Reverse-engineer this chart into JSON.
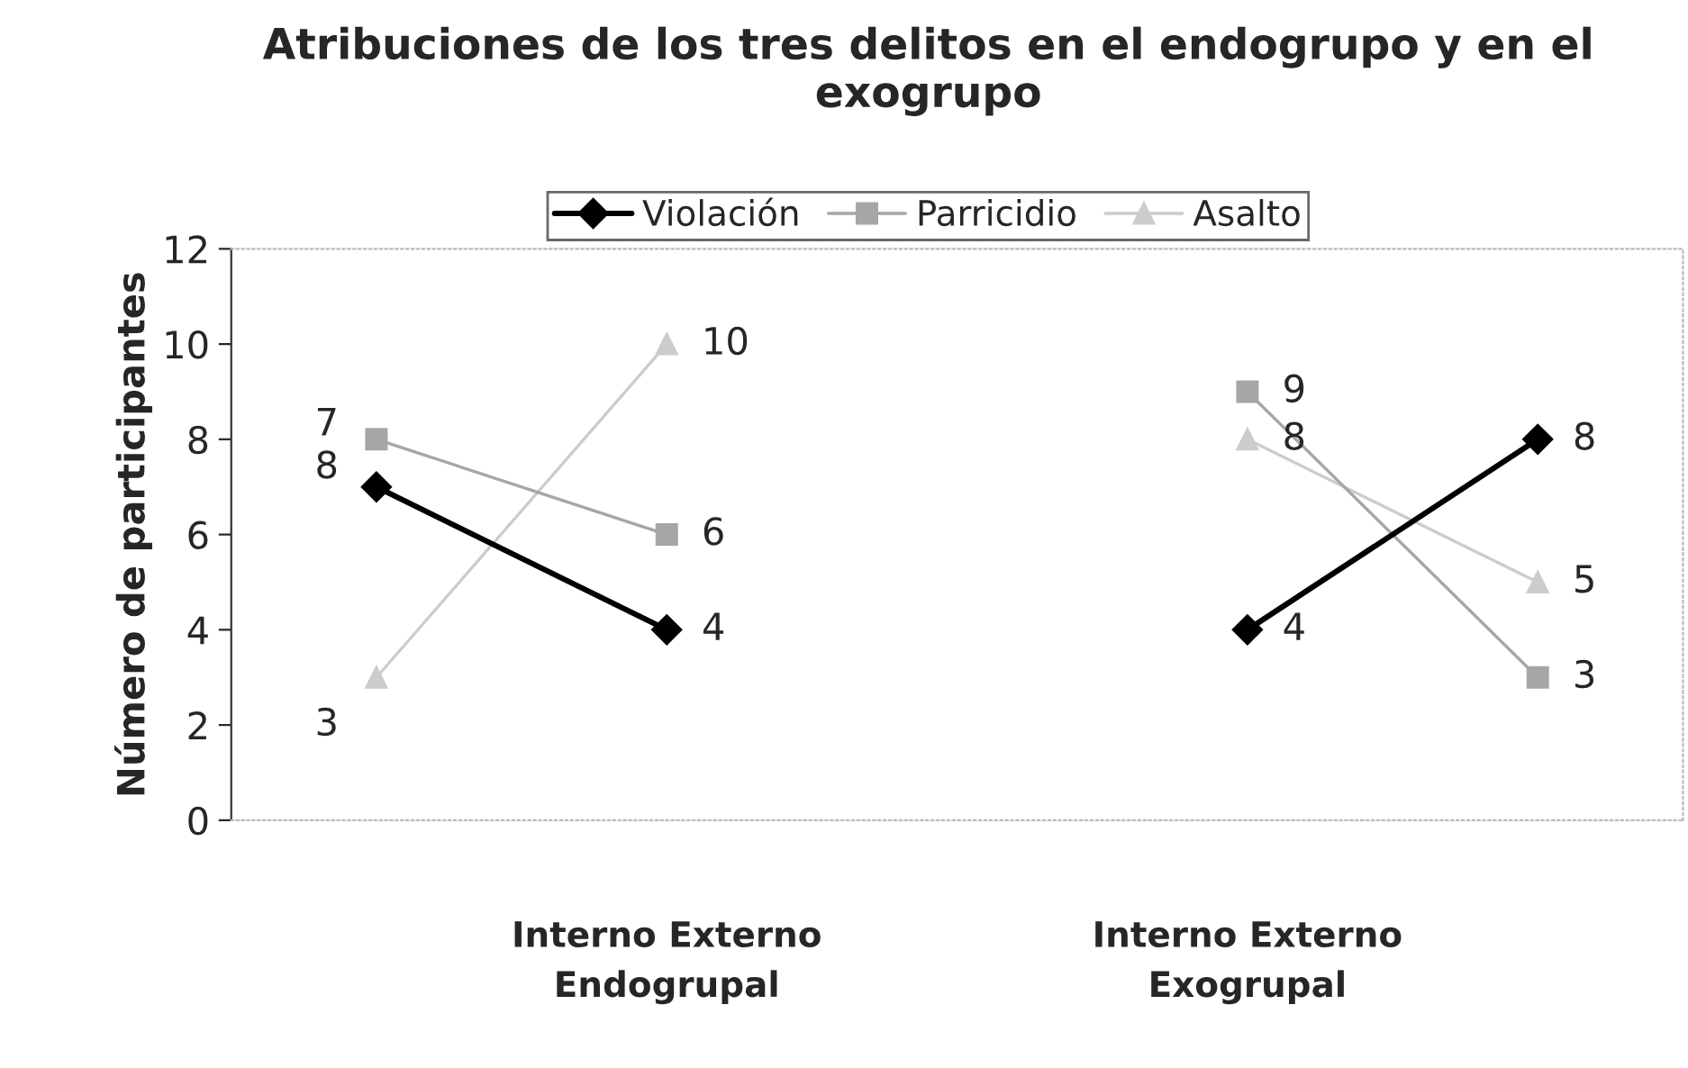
{
  "chart_data": {
    "type": "line",
    "title": "Atribuciones de los tres delitos en el endogrupo y en el exogrupo",
    "ylabel": "Número de participantes",
    "categories": [
      null,
      "Interno Externo\nEndogrupal",
      null,
      "Interno Externo\nExogrupal",
      null
    ],
    "series": [
      {
        "name": "Violación",
        "color": "#000000",
        "marker": "diamond",
        "values": [
          7,
          4,
          null,
          4,
          8
        ],
        "value_labels": [
          "7",
          "4",
          null,
          "4",
          "8"
        ]
      },
      {
        "name": "Parricidio",
        "color": "#a6a6a6",
        "marker": "square",
        "values": [
          8,
          6,
          null,
          9,
          3
        ],
        "value_labels": [
          "8",
          "6",
          null,
          "9",
          "3"
        ]
      },
      {
        "name": "Asalto",
        "color": "#cccccc",
        "marker": "triangle",
        "values": [
          3,
          10,
          null,
          8,
          5
        ],
        "value_labels": [
          "3",
          "10",
          null,
          "8",
          "5"
        ]
      }
    ],
    "ylim": [
      0,
      12
    ],
    "yticks": [
      0,
      2,
      4,
      6,
      8,
      10,
      12
    ],
    "legend": "top",
    "grid": false
  }
}
